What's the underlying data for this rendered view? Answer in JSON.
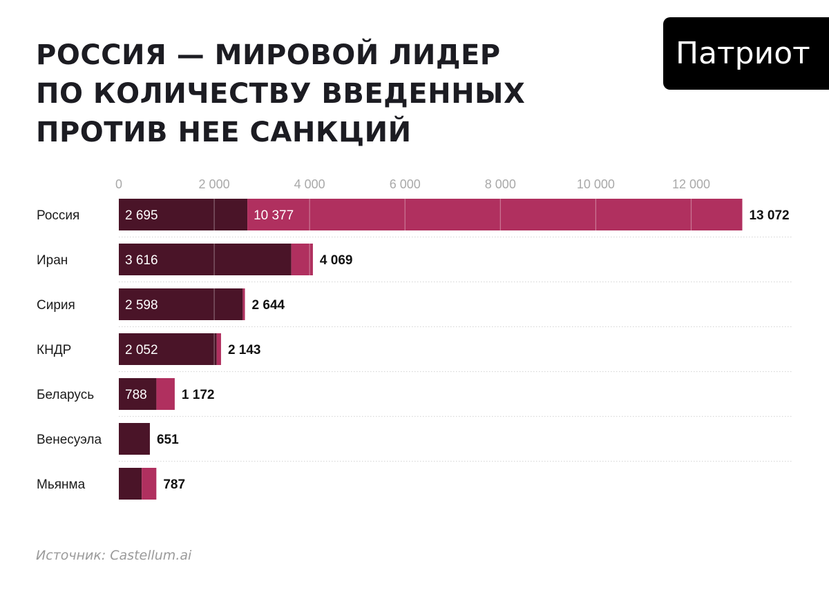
{
  "header": {
    "title_lines": [
      "РОССИЯ — МИРОВОЙ ЛИДЕР",
      "ПО КОЛИЧЕСТВУ ВВЕДЕННЫХ",
      "ПРОТИВ НЕЕ САНКЦИЙ"
    ]
  },
  "logo": {
    "text": "Патриот"
  },
  "footer": {
    "source": "Источник: Castellum.ai"
  },
  "colors": {
    "dark": "#4a1428",
    "accent": "#b0305f",
    "grid": "#d9d9d9",
    "tick_text": "#a9a9a9"
  },
  "chart_data": {
    "type": "bar",
    "orientation": "horizontal",
    "stacked": true,
    "title": "РОССИЯ — МИРОВОЙ ЛИДЕР ПО КОЛИЧЕСТВУ ВВЕДЕННЫХ ПРОТИВ НЕЕ САНКЦИЙ",
    "categories": [
      "Россия",
      "Иран",
      "Сирия",
      "КНДР",
      "Беларусь",
      "Венесуэла",
      "Мьянма"
    ],
    "series": [
      {
        "name": "dark",
        "values": [
          2695,
          3616,
          2598,
          2052,
          788,
          651,
          480
        ],
        "labels": [
          "2 695",
          "3 616",
          "2 598",
          "2 052",
          "788",
          "",
          ""
        ]
      },
      {
        "name": "accent",
        "values": [
          10377,
          453,
          46,
          91,
          384,
          0,
          307
        ],
        "labels": [
          "10 377",
          "",
          "",
          "",
          "",
          "",
          ""
        ]
      }
    ],
    "totals": [
      13072,
      4069,
      2644,
      2143,
      1172,
      651,
      787
    ],
    "total_labels": [
      "13 072",
      "4 069",
      "2 644",
      "2 143",
      "1 172",
      "651",
      "787"
    ],
    "xlim": [
      0,
      13072
    ],
    "xticks": [
      0,
      2000,
      4000,
      6000,
      8000,
      10000,
      12000
    ],
    "xtick_labels": [
      "0",
      "2 000",
      "4 000",
      "6 000",
      "8 000",
      "10 000",
      "12 000"
    ],
    "xlabel": "",
    "ylabel": "",
    "grid": true
  }
}
